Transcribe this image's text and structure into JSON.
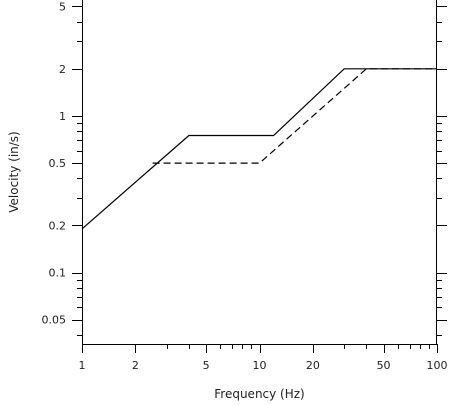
{
  "chart_data": {
    "type": "line",
    "title": "",
    "xlabel": "Frequency (Hz)",
    "ylabel": "Velocity (in/s)",
    "xscale": "log",
    "yscale": "log",
    "xlim": [
      1,
      100
    ],
    "ylim": [
      0.035,
      5.5
    ],
    "grid": false,
    "legend": "none",
    "x_major_ticks": [
      1,
      2,
      5,
      10,
      20,
      50,
      100
    ],
    "x_major_tick_labels": [
      "1",
      "2",
      "5",
      "10",
      "20",
      "50",
      "100"
    ],
    "y_major_ticks": [
      0.05,
      0.1,
      0.2,
      0.5,
      1,
      2,
      5
    ],
    "y_major_tick_labels": [
      "0.05",
      "0.1",
      "0.2",
      "0.5",
      "1",
      "2",
      "5"
    ],
    "series": [
      {
        "style": "solid",
        "color": "#000000",
        "x": [
          1,
          4,
          12,
          30,
          100
        ],
        "y": [
          0.19,
          0.75,
          0.75,
          2,
          2
        ]
      },
      {
        "style": "dashed",
        "color": "#000000",
        "x": [
          2.5,
          10,
          40,
          100
        ],
        "y": [
          0.5,
          0.5,
          2,
          2
        ]
      }
    ]
  }
}
